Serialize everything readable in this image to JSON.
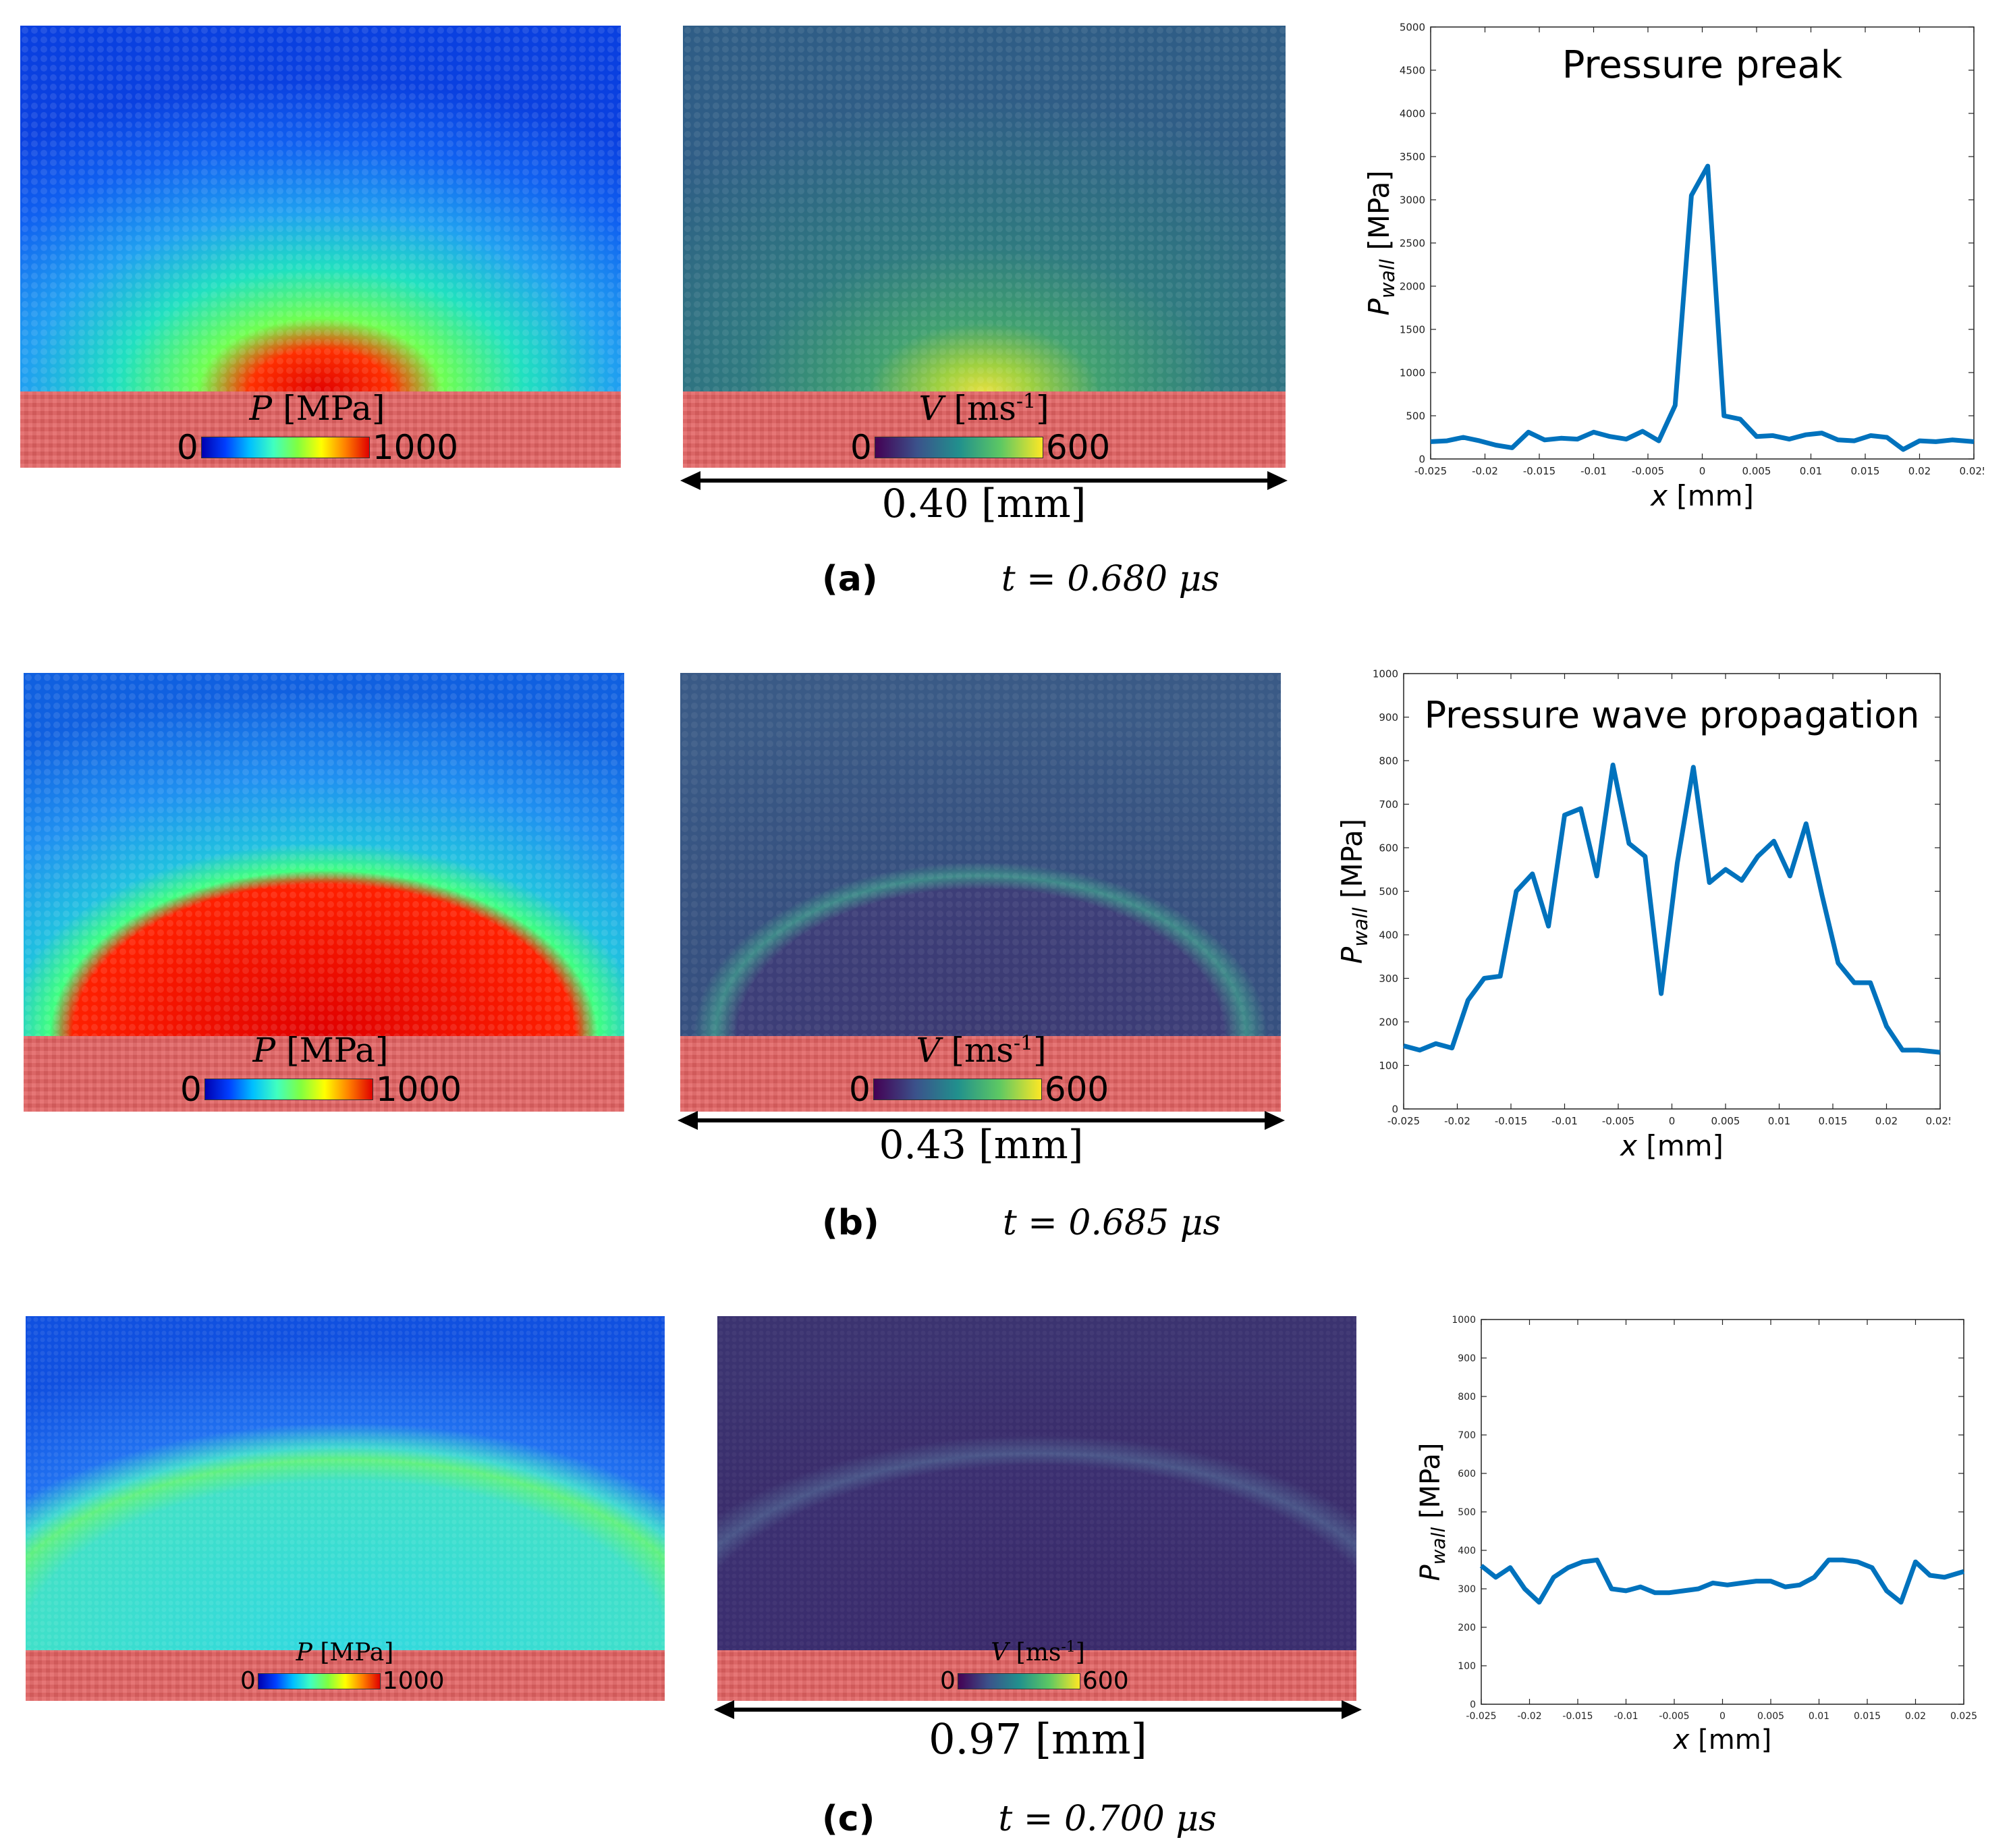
{
  "figure": {
    "panels": [
      {
        "id": "a",
        "label": "(a)",
        "time": "t = 0.680 μs",
        "pressure_colorbar": {
          "var": "P",
          "unit": "[MPa]",
          "min": "0",
          "max": "1000"
        },
        "velocity_colorbar": {
          "var": "V",
          "unit": "[ms",
          "exp": "-1",
          "close": "]",
          "min": "0",
          "max": "600"
        },
        "scale": "0.40 [mm]"
      },
      {
        "id": "b",
        "label": "(b)",
        "time": "t = 0.685 μs",
        "pressure_colorbar": {
          "var": "P",
          "unit": "[MPa]",
          "min": "0",
          "max": "1000"
        },
        "velocity_colorbar": {
          "var": "V",
          "unit": "[ms",
          "exp": "-1",
          "close": "]",
          "min": "0",
          "max": "600"
        },
        "scale": "0.43 [mm]"
      },
      {
        "id": "c",
        "label": "(c)",
        "time": "t = 0.700 μs",
        "pressure_colorbar": {
          "var": "P",
          "unit": "[MPa]",
          "min": "0",
          "max": "1000"
        },
        "velocity_colorbar": {
          "var": "V",
          "unit": "[ms",
          "exp": "-1",
          "close": "]",
          "min": "0",
          "max": "600"
        },
        "scale": "0.97 [mm]"
      }
    ]
  },
  "chart_data": [
    {
      "type": "line",
      "title": "Pressure preak",
      "xlabel": "x [mm]",
      "ylabel": "P_wall [MPa]",
      "ylabel_main": "P",
      "ylabel_sub": "wall",
      "ylabel_unit": " [MPa]",
      "xlabel_var": "x",
      "xlabel_unit": " [mm]",
      "xlim": [
        -0.025,
        0.025
      ],
      "ylim": [
        0,
        5000
      ],
      "xticks": [
        "-0.025",
        "-0.02",
        "-0.015",
        "-0.01",
        "-0.005",
        "0",
        "0.005",
        "0.01",
        "0.015",
        "0.02",
        "0.025"
      ],
      "yticks": [
        "0",
        "500",
        "1000",
        "1500",
        "2000",
        "2500",
        "3000",
        "3500",
        "4000",
        "4500",
        "5000"
      ],
      "color": "#0072bd",
      "x": [
        -0.025,
        -0.0235,
        -0.022,
        -0.0205,
        -0.019,
        -0.0175,
        -0.016,
        -0.0145,
        -0.013,
        -0.0115,
        -0.01,
        -0.0085,
        -0.007,
        -0.0055,
        -0.004,
        -0.0025,
        -0.001,
        0.0005,
        0.002,
        0.0035,
        0.005,
        0.0065,
        0.008,
        0.0095,
        0.011,
        0.0125,
        0.014,
        0.0155,
        0.017,
        0.0185,
        0.02,
        0.0215,
        0.023,
        0.025
      ],
      "y": [
        200,
        210,
        250,
        210,
        160,
        130,
        310,
        220,
        240,
        230,
        310,
        260,
        230,
        320,
        210,
        620,
        3050,
        3390,
        500,
        460,
        260,
        270,
        230,
        280,
        300,
        220,
        210,
        270,
        250,
        110,
        210,
        200,
        220,
        200
      ]
    },
    {
      "type": "line",
      "title": "Pressure wave propagation",
      "xlabel": "x [mm]",
      "ylabel": "P_wall [MPa]",
      "ylabel_main": "P",
      "ylabel_sub": "wall",
      "ylabel_unit": " [MPa]",
      "xlabel_var": "x",
      "xlabel_unit": " [mm]",
      "xlim": [
        -0.025,
        0.025
      ],
      "ylim": [
        0,
        1000
      ],
      "xticks": [
        "-0.025",
        "-0.02",
        "-0.015",
        "-0.01",
        "-0.005",
        "0",
        "0.005",
        "0.01",
        "0.015",
        "0.02",
        "0.025"
      ],
      "yticks": [
        "0",
        "100",
        "200",
        "300",
        "400",
        "500",
        "600",
        "700",
        "800",
        "900",
        "1000"
      ],
      "color": "#0072bd",
      "x": [
        -0.025,
        -0.0235,
        -0.022,
        -0.0205,
        -0.019,
        -0.0175,
        -0.016,
        -0.0145,
        -0.013,
        -0.0115,
        -0.01,
        -0.0085,
        -0.007,
        -0.0055,
        -0.004,
        -0.0025,
        -0.001,
        0.0005,
        0.002,
        0.0035,
        0.005,
        0.0065,
        0.008,
        0.0095,
        0.011,
        0.0125,
        0.014,
        0.0155,
        0.017,
        0.0185,
        0.02,
        0.0215,
        0.023,
        0.025
      ],
      "y": [
        145,
        135,
        150,
        140,
        250,
        300,
        305,
        500,
        540,
        420,
        675,
        690,
        535,
        790,
        610,
        580,
        265,
        565,
        785,
        520,
        550,
        525,
        580,
        615,
        535,
        655,
        490,
        335,
        290,
        290,
        190,
        135,
        135,
        130
      ]
    },
    {
      "type": "line",
      "title": "",
      "xlabel": "x [mm]",
      "ylabel": "P_wall [MPa]",
      "ylabel_main": "P",
      "ylabel_sub": "wall",
      "ylabel_unit": " [MPa]",
      "xlabel_var": "x",
      "xlabel_unit": " [mm]",
      "xlim": [
        -0.025,
        0.025
      ],
      "ylim": [
        0,
        1000
      ],
      "xticks": [
        "-0.025",
        "-0.02",
        "-0.015",
        "-0.01",
        "-0.005",
        "0",
        "0.005",
        "0.01",
        "0.015",
        "0.02",
        "0.025"
      ],
      "yticks": [
        "0",
        "100",
        "200",
        "300",
        "400",
        "500",
        "600",
        "700",
        "800",
        "900",
        "1000"
      ],
      "color": "#0072bd",
      "x": [
        -0.025,
        -0.0235,
        -0.022,
        -0.0205,
        -0.019,
        -0.0175,
        -0.016,
        -0.0145,
        -0.013,
        -0.0115,
        -0.01,
        -0.0085,
        -0.007,
        -0.0055,
        -0.004,
        -0.0025,
        -0.001,
        0.0005,
        0.002,
        0.0035,
        0.005,
        0.0065,
        0.008,
        0.0095,
        0.011,
        0.0125,
        0.014,
        0.0155,
        0.017,
        0.0185,
        0.02,
        0.0215,
        0.023,
        0.025
      ],
      "y": [
        360,
        330,
        355,
        300,
        265,
        330,
        355,
        370,
        375,
        300,
        295,
        305,
        290,
        290,
        295,
        300,
        315,
        310,
        315,
        320,
        320,
        305,
        310,
        330,
        375,
        375,
        370,
        355,
        295,
        265,
        370,
        335,
        330,
        345
      ]
    }
  ]
}
